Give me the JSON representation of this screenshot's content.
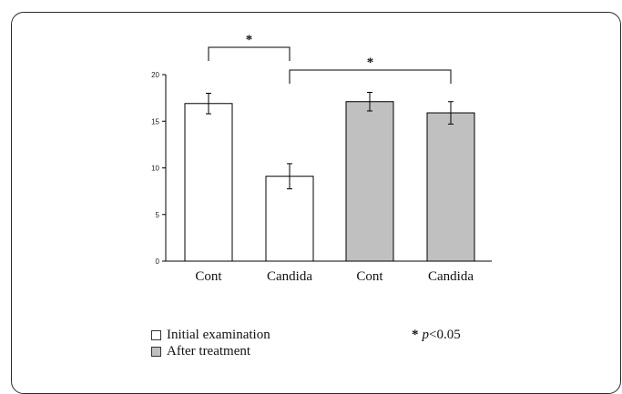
{
  "chart_data": {
    "type": "bar",
    "categories": [
      "Cont",
      "Candida",
      "Cont",
      "Candida"
    ],
    "values": [
      16.9,
      9.1,
      17.1,
      15.9
    ],
    "errors": [
      1.1,
      1.35,
      1.0,
      1.2
    ],
    "groups": [
      "Initial examination",
      "Initial examination",
      "After treatment",
      "After treatment"
    ],
    "ylim": [
      0,
      20
    ],
    "yticks": [
      "0",
      "5",
      "10",
      "15",
      "20"
    ],
    "grid": false,
    "significance": [
      {
        "from": 0,
        "to": 1,
        "label": "*"
      },
      {
        "from": 1,
        "to": 3,
        "label": "*"
      }
    ],
    "legend": {
      "placement": "bottom-left",
      "entries": [
        {
          "label": "Initial examination",
          "color": "#ffffff"
        },
        {
          "label": "After treatment",
          "color": "#c0c0c0"
        }
      ]
    },
    "annotation": {
      "star": "*",
      "p_symbol": "p",
      "p_text": "<0.05"
    }
  }
}
